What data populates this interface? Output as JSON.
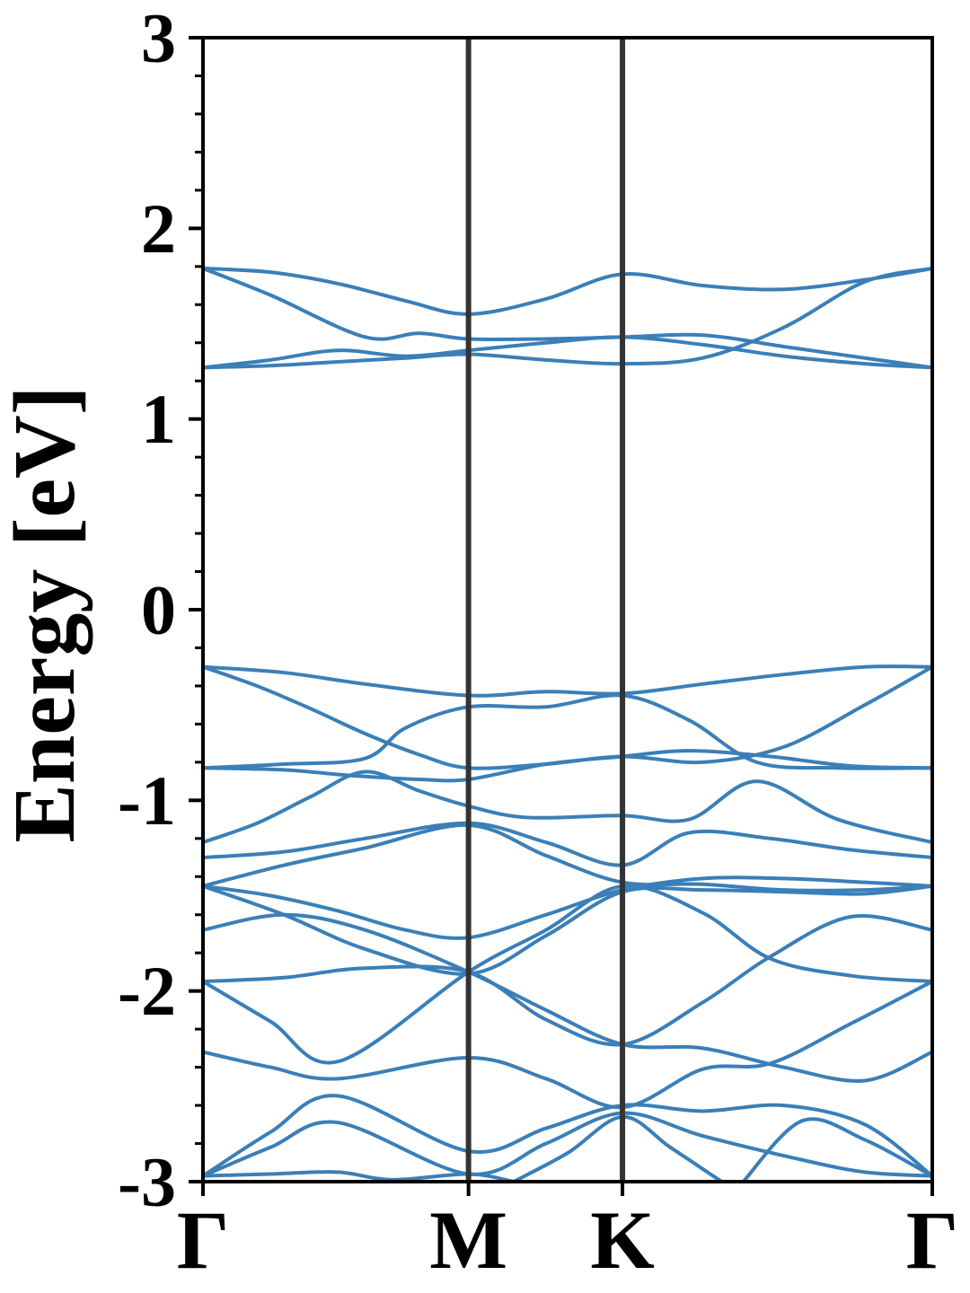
{
  "chart_data": {
    "type": "line",
    "title": "",
    "ylabel": "Energy [eV]",
    "xlabel": "",
    "ylim": [
      -3,
      3
    ],
    "yticks": [
      3,
      2,
      1,
      0,
      -1,
      -2,
      -3
    ],
    "ytick_labels": [
      "3",
      "2",
      "1",
      "0",
      "-1",
      "-2",
      "-3"
    ],
    "y_minor_step": 0.2,
    "x_axis": {
      "range": [
        0,
        2.7
      ],
      "high_symmetry_points": [
        {
          "label": "Γ",
          "x": 0
        },
        {
          "label": "M",
          "x": 0.983
        },
        {
          "label": "K",
          "x": 1.553
        },
        {
          "label": "Γ",
          "x": 2.7
        }
      ]
    },
    "grid": false,
    "legend": "none",
    "line_color": "#3a7fb8",
    "divider_color": "#333333",
    "bands": [
      {
        "x": [
          0,
          0.25,
          0.5,
          0.75,
          0.983,
          1.27,
          1.553,
          1.85,
          2.15,
          2.45,
          2.7
        ],
        "y": [
          1.79,
          1.77,
          1.71,
          1.62,
          1.55,
          1.63,
          1.76,
          1.7,
          1.68,
          1.73,
          1.79
        ]
      },
      {
        "x": [
          0,
          0.25,
          0.6,
          0.8,
          0.983,
          1.27,
          1.553,
          1.85,
          2.15,
          2.45,
          2.7
        ],
        "y": [
          1.79,
          1.65,
          1.43,
          1.45,
          1.42,
          1.42,
          1.43,
          1.44,
          1.38,
          1.32,
          1.27
        ]
      },
      {
        "x": [
          0,
          0.25,
          0.5,
          0.75,
          0.983,
          1.27,
          1.553,
          1.85,
          2.15,
          2.45,
          2.7
        ],
        "y": [
          1.27,
          1.31,
          1.36,
          1.33,
          1.36,
          1.4,
          1.43,
          1.39,
          1.33,
          1.29,
          1.27
        ]
      },
      {
        "x": [
          0,
          0.25,
          0.5,
          0.75,
          0.983,
          1.27,
          1.553,
          1.85,
          2.15,
          2.45,
          2.7
        ],
        "y": [
          1.27,
          1.28,
          1.3,
          1.32,
          1.34,
          1.31,
          1.29,
          1.32,
          1.48,
          1.72,
          1.79
        ]
      },
      {
        "x": [
          0,
          0.3,
          0.6,
          0.983,
          1.27,
          1.553,
          1.85,
          2.15,
          2.45,
          2.7
        ],
        "y": [
          -0.3,
          -0.33,
          -0.39,
          -0.45,
          -0.43,
          -0.44,
          -0.39,
          -0.34,
          -0.3,
          -0.3
        ]
      },
      {
        "x": [
          0,
          0.2,
          0.4,
          0.6,
          0.8,
          0.983,
          1.27,
          1.553,
          1.85,
          2.15,
          2.45,
          2.7
        ],
        "y": [
          -0.3,
          -0.4,
          -0.52,
          -0.65,
          -0.76,
          -0.83,
          -0.81,
          -0.77,
          -0.8,
          -0.72,
          -0.5,
          -0.3
        ]
      },
      {
        "x": [
          0,
          0.3,
          0.6,
          0.75,
          0.983,
          1.27,
          1.553,
          1.8,
          2.05,
          2.35,
          2.7
        ],
        "y": [
          -0.83,
          -0.81,
          -0.78,
          -0.62,
          -0.51,
          -0.51,
          -0.45,
          -0.58,
          -0.8,
          -0.83,
          -0.83
        ]
      },
      {
        "x": [
          0,
          0.3,
          0.55,
          0.8,
          0.983,
          1.27,
          1.553,
          1.8,
          2.1,
          2.4,
          2.7
        ],
        "y": [
          -0.83,
          -0.84,
          -0.87,
          -0.89,
          -0.89,
          -0.81,
          -0.77,
          -0.74,
          -0.77,
          -0.82,
          -0.83
        ]
      },
      {
        "x": [
          0,
          0.2,
          0.4,
          0.6,
          0.8,
          0.983,
          1.2,
          1.553,
          1.8,
          2.05,
          2.35,
          2.7
        ],
        "y": [
          -1.22,
          -1.12,
          -0.98,
          -0.85,
          -0.95,
          -1.03,
          -1.09,
          -1.08,
          -1.1,
          -0.9,
          -1.1,
          -1.22
        ]
      },
      {
        "x": [
          0,
          0.3,
          0.6,
          0.983,
          1.27,
          1.553,
          1.8,
          2.1,
          2.4,
          2.7
        ],
        "y": [
          -1.3,
          -1.27,
          -1.2,
          -1.12,
          -1.22,
          -1.34,
          -1.17,
          -1.2,
          -1.26,
          -1.3
        ]
      },
      {
        "x": [
          0,
          0.3,
          0.6,
          0.983,
          1.27,
          1.553,
          1.85,
          2.15,
          2.45,
          2.7
        ],
        "y": [
          -1.45,
          -1.34,
          -1.25,
          -1.13,
          -1.29,
          -1.43,
          -1.44,
          -1.47,
          -1.47,
          -1.45
        ]
      },
      {
        "x": [
          0,
          0.25,
          0.5,
          0.75,
          0.983,
          1.27,
          1.553,
          1.85,
          2.15,
          2.45,
          2.7
        ],
        "y": [
          -1.45,
          -1.5,
          -1.58,
          -1.68,
          -1.72,
          -1.6,
          -1.47,
          -1.41,
          -1.41,
          -1.43,
          -1.45
        ]
      },
      {
        "x": [
          0,
          0.3,
          0.6,
          0.983,
          1.27,
          1.553,
          1.85,
          2.15,
          2.45,
          2.7
        ],
        "y": [
          -1.45,
          -1.6,
          -1.78,
          -1.91,
          -1.71,
          -1.48,
          -1.47,
          -1.48,
          -1.49,
          -1.45
        ]
      },
      {
        "x": [
          0,
          0.3,
          0.6,
          0.983,
          1.27,
          1.553,
          1.85,
          2.15,
          2.45,
          2.7
        ],
        "y": [
          -1.68,
          -1.6,
          -1.68,
          -1.9,
          -2.1,
          -2.28,
          -2.3,
          -2.4,
          -2.47,
          -2.32
        ]
      },
      {
        "x": [
          0,
          0.3,
          0.6,
          0.983,
          1.27,
          1.553,
          1.85,
          2.1,
          2.4,
          2.7
        ],
        "y": [
          -1.95,
          -1.93,
          -1.88,
          -1.9,
          -2.15,
          -2.28,
          -2.06,
          -1.82,
          -1.61,
          -1.68
        ]
      },
      {
        "x": [
          0,
          0.25,
          0.5,
          0.983,
          1.27,
          1.553,
          1.85,
          2.1,
          2.4,
          2.7
        ],
        "y": [
          -1.95,
          -2.16,
          -2.37,
          -1.9,
          -1.68,
          -1.45,
          -1.59,
          -1.83,
          -1.92,
          -1.95
        ]
      },
      {
        "x": [
          0,
          0.25,
          0.5,
          0.983,
          1.27,
          1.553,
          1.85,
          2.1,
          2.4,
          2.7
        ],
        "y": [
          -2.32,
          -2.4,
          -2.46,
          -2.35,
          -2.46,
          -2.61,
          -2.41,
          -2.38,
          -2.17,
          -1.95
        ]
      },
      {
        "x": [
          0,
          0.25,
          0.5,
          0.983,
          1.27,
          1.553,
          1.85,
          2.15,
          2.45,
          2.7
        ],
        "y": [
          -2.97,
          -2.74,
          -2.55,
          -2.84,
          -2.72,
          -2.6,
          -2.63,
          -2.6,
          -2.7,
          -2.97
        ]
      },
      {
        "x": [
          0,
          0.25,
          0.5,
          0.983,
          1.27,
          1.553,
          1.85,
          2.2,
          2.45,
          2.7
        ],
        "y": [
          -2.97,
          -2.82,
          -2.69,
          -2.96,
          -2.8,
          -2.64,
          -2.76,
          -2.88,
          -2.95,
          -2.97
        ]
      },
      {
        "x": [
          0,
          0.25,
          0.5,
          0.7,
          0.983,
          1.15
        ],
        "y": [
          -2.97,
          -2.96,
          -2.95,
          -2.99,
          -2.96,
          -3.0
        ]
      },
      {
        "x": [
          1.15,
          1.35,
          1.553,
          1.73,
          1.92
        ],
        "y": [
          -3.0,
          -2.85,
          -2.66,
          -2.82,
          -3.0
        ]
      },
      {
        "x": [
          2.0,
          2.22,
          2.45,
          2.7
        ],
        "y": [
          -3.0,
          -2.68,
          -2.78,
          -2.97
        ]
      }
    ]
  }
}
